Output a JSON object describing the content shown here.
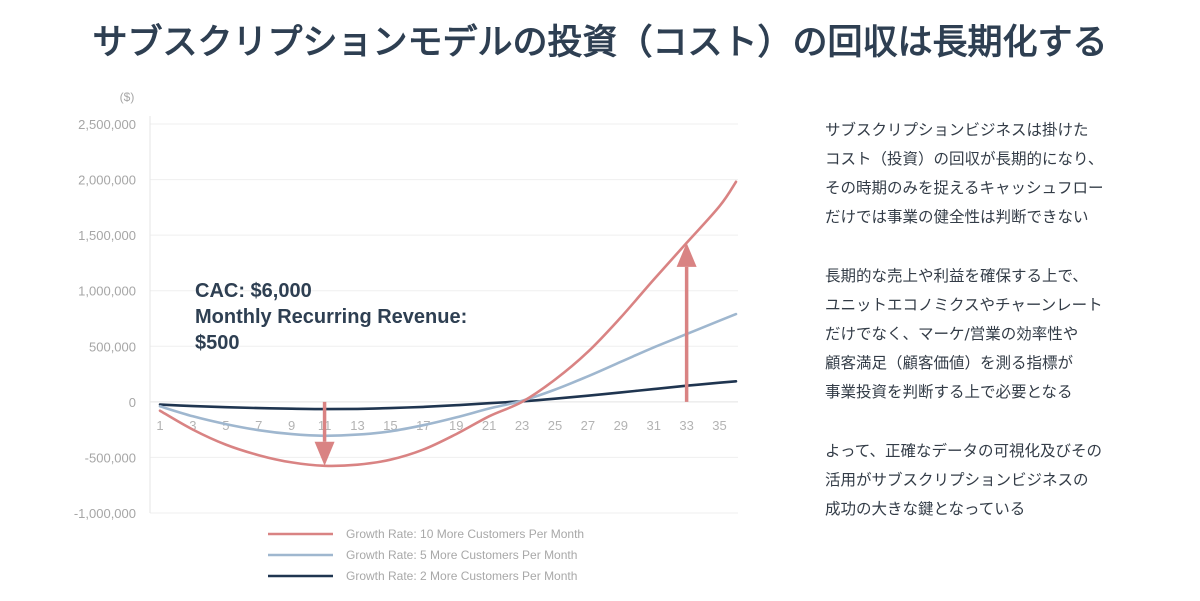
{
  "title": "サブスクリプションモデルの投資（コスト）の回収は長期化する",
  "annotation": {
    "line1": "CAC: $6,000",
    "line2": "Monthly Recurring Revenue:",
    "line3": "$500"
  },
  "side_text": [
    "サブスクリプションビジネスは掛けた\nコスト（投資）の回収が長期的になり、\nその時期のみを捉えるキャッシュフロー\nだけでは事業の健全性は判断できない",
    "長期的な売上や利益を確保する上で、\nユニットエコノミクスやチャーンレート\nだけでなく、マーケ/営業の効率性や\n顧客満足（顧客価値）を測る指標が\n事業投資を判断する上で必要となる",
    "よって、正確なデータの可視化及びその\n活用がサブスクリプションビジネスの\n成功の大きな鍵となっている"
  ],
  "chart_data": {
    "type": "line",
    "ylabel": "($)",
    "ylim": [
      -1000000,
      2500000
    ],
    "yticks": [
      2500000,
      2000000,
      1500000,
      1000000,
      500000,
      0,
      -500000,
      -1000000
    ],
    "ytick_labels": [
      "2,500,000",
      "2,000,000",
      "1,500,000",
      "1,000,000",
      "500,000",
      "0",
      "-500,000",
      "-1,000,000"
    ],
    "xlim": [
      1,
      36
    ],
    "xticks": [
      1,
      3,
      5,
      7,
      9,
      11,
      13,
      15,
      17,
      19,
      21,
      23,
      25,
      27,
      29,
      31,
      33,
      35
    ],
    "grid": true,
    "legend_position": "bottom",
    "series": [
      {
        "name": "Growth Rate: 10 More Customers Per Month",
        "color": "#d98383",
        "x": [
          1,
          3,
          5,
          7,
          9,
          11,
          13,
          15,
          17,
          19,
          21,
          23,
          25,
          27,
          29,
          31,
          33,
          35,
          36
        ],
        "values": [
          -80000,
          -250000,
          -385000,
          -480000,
          -545000,
          -575000,
          -565000,
          -520000,
          -430000,
          -290000,
          -130000,
          0,
          200000,
          450000,
          760000,
          1100000,
          1430000,
          1760000,
          1980000
        ]
      },
      {
        "name": "Growth Rate: 5 More Customers Per Month",
        "color": "#9fb7cf",
        "x": [
          1,
          3,
          5,
          7,
          9,
          11,
          13,
          15,
          17,
          19,
          21,
          23,
          25,
          27,
          29,
          31,
          33,
          35,
          36
        ],
        "values": [
          -40000,
          -130000,
          -200000,
          -255000,
          -290000,
          -305000,
          -295000,
          -265000,
          -210000,
          -140000,
          -60000,
          10000,
          110000,
          230000,
          360000,
          490000,
          610000,
          730000,
          790000
        ]
      },
      {
        "name": "Growth Rate: 2 More Customers Per Month",
        "color": "#1f3550",
        "x": [
          1,
          3,
          5,
          7,
          9,
          11,
          13,
          15,
          17,
          19,
          21,
          23,
          25,
          27,
          29,
          31,
          33,
          35,
          36
        ],
        "values": [
          -25000,
          -38000,
          -48000,
          -56000,
          -62000,
          -65000,
          -63000,
          -56000,
          -45000,
          -30000,
          -12000,
          5000,
          28000,
          55000,
          85000,
          115000,
          145000,
          172000,
          185000
        ]
      }
    ],
    "arrows": [
      {
        "x": 11,
        "from": 0,
        "to": -575000,
        "color": "#d98383"
      },
      {
        "x": 33,
        "from": 0,
        "to": 1430000,
        "color": "#d98383"
      }
    ]
  }
}
